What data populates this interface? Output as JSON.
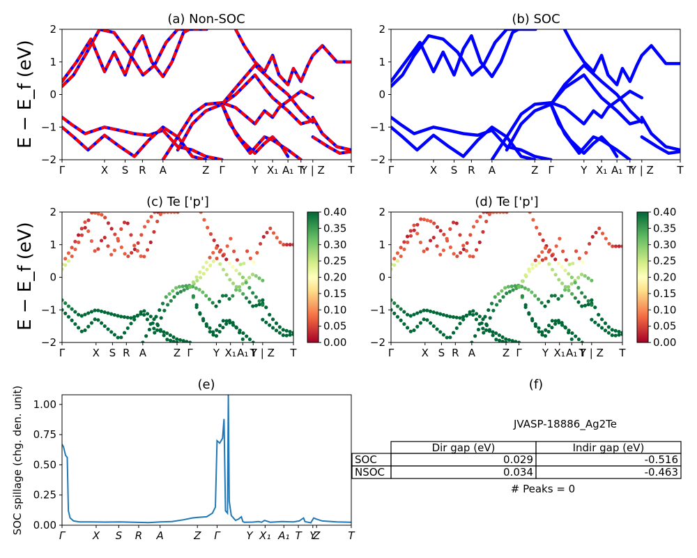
{
  "chart_data": [
    {
      "id": "a",
      "type": "line",
      "title": "(a) Non-SOC",
      "ylabel": "E − E_f (eV)",
      "ylim": [
        -2,
        2
      ],
      "yticks": [
        "2",
        "1",
        "0",
        "−1",
        "−2"
      ],
      "kpoint_labels": [
        "Γ",
        "X",
        "S",
        "R",
        "A",
        "Z",
        "Γ",
        "Y",
        "X₁",
        "A₁",
        "T",
        "Y | Z",
        "T"
      ],
      "kpoint_positions": [
        0,
        0.147,
        0.218,
        0.278,
        0.349,
        0.497,
        0.553,
        0.667,
        0.728,
        0.781,
        0.826,
        0.867,
        1.0
      ],
      "series": [
        {
          "color": "#0000ff",
          "style": "solid"
        },
        {
          "color": "#ff0000",
          "style": "dashed"
        }
      ],
      "bands": [
        {
          "x": [
            0,
            0.04,
            0.08,
            0.13,
            0.18,
            0.23,
            0.28,
            0.32,
            0.36,
            0.4,
            0.44,
            0.49,
            0.5
          ],
          "y": [
            0.25,
            0.6,
            1.2,
            2.0,
            1.9,
            1.3,
            0.6,
            0.9,
            1.6,
            2.0,
            2.0,
            2.0,
            2.0
          ]
        },
        {
          "x": [
            0,
            0.05,
            0.1,
            0.147,
            0.18,
            0.218,
            0.25,
            0.278,
            0.31,
            0.349,
            0.38,
            0.42,
            0.44
          ],
          "y": [
            0.4,
            1.0,
            1.7,
            0.7,
            1.3,
            0.6,
            1.4,
            1.8,
            1.0,
            0.55,
            1.0,
            1.9,
            2.0
          ]
        },
        {
          "x": [
            0.6,
            0.63,
            0.667,
            0.7,
            0.728,
            0.75,
            0.781,
            0.8,
            0.826,
            0.85,
            0.867,
            0.9,
            0.95,
            1.0
          ],
          "y": [
            2.0,
            1.5,
            1.0,
            0.7,
            1.2,
            0.6,
            0.3,
            0.8,
            0.4,
            0.9,
            1.2,
            1.5,
            1.0,
            1.0
          ]
        },
        {
          "x": [
            0,
            0.03,
            0.08,
            0.147,
            0.2,
            0.25,
            0.3,
            0.349,
            0.4,
            0.45,
            0.497,
            0.553
          ],
          "y": [
            -0.7,
            -0.9,
            -1.2,
            -1.0,
            -1.1,
            -1.2,
            -1.25,
            -1.1,
            -1.6,
            -1.7,
            -1.9,
            -2.0
          ]
        },
        {
          "x": [
            0,
            0.04,
            0.09,
            0.147,
            0.2,
            0.25,
            0.3,
            0.349,
            0.4,
            0.45,
            0.497
          ],
          "y": [
            -1.0,
            -1.3,
            -1.7,
            -1.25,
            -1.6,
            -1.9,
            -1.4,
            -1.0,
            -1.3,
            -1.9,
            -2.0
          ]
        },
        {
          "x": [
            0.349,
            0.4,
            0.45,
            0.497,
            0.553,
            0.6,
            0.667,
            0.7,
            0.728,
            0.75,
            0.781,
            0.826,
            0.867
          ],
          "y": [
            -2.0,
            -1.3,
            -0.6,
            -0.3,
            -0.25,
            -0.4,
            -0.9,
            -0.5,
            -0.7,
            -0.4,
            -0.2,
            0.1,
            -0.1
          ]
        },
        {
          "x": [
            0.4,
            0.45,
            0.497,
            0.553,
            0.6,
            0.667,
            0.7,
            0.728,
            0.781,
            0.826,
            0.867
          ],
          "y": [
            -1.7,
            -0.9,
            -0.5,
            -0.3,
            0.0,
            0.6,
            0.2,
            -0.1,
            -0.5,
            -0.9,
            -0.8
          ]
        },
        {
          "x": [
            0.553,
            0.6,
            0.667,
            0.728,
            0.781,
            0.826,
            0.867
          ],
          "y": [
            -0.3,
            0.2,
            0.9,
            0.4,
            0.0,
            -0.5,
            -0.85
          ]
        },
        {
          "x": [
            0.553,
            0.58,
            0.62,
            0.667,
            0.7,
            0.728,
            0.76,
            0.781
          ],
          "y": [
            -0.3,
            -0.9,
            -1.4,
            -1.8,
            -1.5,
            -1.3,
            -1.6,
            -1.9
          ]
        },
        {
          "x": [
            0.553,
            0.6,
            0.65,
            0.7,
            0.728,
            0.781,
            0.826
          ],
          "y": [
            -0.3,
            -1.2,
            -1.8,
            -1.3,
            -1.4,
            -1.7,
            -2.0
          ]
        },
        {
          "x": [
            0.867,
            0.9,
            0.95,
            1.0
          ],
          "y": [
            -0.7,
            -1.2,
            -1.6,
            -1.7
          ]
        },
        {
          "x": [
            0.867,
            0.92,
            0.96,
            1.0
          ],
          "y": [
            -1.3,
            -1.6,
            -1.8,
            -1.75
          ]
        }
      ]
    },
    {
      "id": "b",
      "type": "line",
      "title": "(b) SOC",
      "ylim": [
        -2,
        2
      ],
      "yticks": [
        "2",
        "1",
        "0",
        "−1",
        "−2"
      ],
      "kpoint_labels": [
        "Γ",
        "X",
        "S",
        "R",
        "A",
        "Z",
        "Γ",
        "Y",
        "X₁",
        "A₁",
        "T",
        "Y | Z",
        "T"
      ],
      "kpoint_positions": [
        0,
        0.147,
        0.218,
        0.278,
        0.349,
        0.497,
        0.553,
        0.667,
        0.728,
        0.781,
        0.826,
        0.867,
        1.0
      ],
      "series": [
        {
          "color": "#0000ff",
          "style": "solid"
        }
      ],
      "bands": [
        {
          "x": [
            0,
            0.04,
            0.08,
            0.13,
            0.18,
            0.23,
            0.28,
            0.32,
            0.36,
            0.4,
            0.44,
            0.49,
            0.5
          ],
          "y": [
            0.25,
            0.6,
            1.2,
            1.8,
            1.7,
            1.3,
            0.6,
            0.9,
            1.6,
            2.0,
            2.0,
            2.0,
            2.0
          ]
        },
        {
          "x": [
            0,
            0.05,
            0.1,
            0.147,
            0.18,
            0.218,
            0.25,
            0.278,
            0.31,
            0.349,
            0.38,
            0.42,
            0.44
          ],
          "y": [
            0.4,
            1.0,
            1.6,
            0.7,
            1.3,
            0.6,
            1.4,
            1.8,
            1.0,
            0.55,
            1.0,
            1.9,
            2.0
          ]
        },
        {
          "x": [
            0.6,
            0.63,
            0.667,
            0.7,
            0.728,
            0.75,
            0.781,
            0.8,
            0.826,
            0.85,
            0.867,
            0.9,
            0.95,
            1.0
          ],
          "y": [
            2.0,
            1.5,
            1.0,
            0.7,
            1.2,
            0.6,
            0.3,
            0.8,
            0.4,
            0.9,
            1.2,
            1.5,
            0.95,
            0.95
          ]
        },
        {
          "x": [
            0,
            0.03,
            0.08,
            0.147,
            0.2,
            0.25,
            0.3,
            0.349,
            0.4,
            0.45,
            0.497,
            0.553
          ],
          "y": [
            -0.7,
            -0.9,
            -1.2,
            -1.0,
            -1.1,
            -1.2,
            -1.25,
            -1.1,
            -1.6,
            -1.7,
            -1.9,
            -2.0
          ]
        },
        {
          "x": [
            0,
            0.04,
            0.09,
            0.147,
            0.2,
            0.25,
            0.3,
            0.349,
            0.4,
            0.45,
            0.497
          ],
          "y": [
            -1.0,
            -1.3,
            -1.7,
            -1.25,
            -1.6,
            -1.9,
            -1.4,
            -1.0,
            -1.3,
            -1.9,
            -2.0
          ]
        },
        {
          "x": [
            0.349,
            0.4,
            0.45,
            0.497,
            0.553,
            0.6,
            0.667,
            0.7,
            0.728,
            0.75,
            0.781,
            0.826,
            0.867
          ],
          "y": [
            -2.0,
            -1.3,
            -0.6,
            -0.3,
            -0.25,
            -0.4,
            -0.9,
            -0.5,
            -0.7,
            -0.4,
            -0.2,
            0.1,
            -0.1
          ]
        },
        {
          "x": [
            0.4,
            0.45,
            0.497,
            0.553,
            0.6,
            0.667,
            0.7,
            0.728,
            0.781,
            0.826,
            0.867
          ],
          "y": [
            -1.7,
            -0.9,
            -0.5,
            -0.3,
            0.2,
            0.6,
            0.2,
            -0.1,
            -0.5,
            -0.9,
            -0.8
          ]
        },
        {
          "x": [
            0.553,
            0.6,
            0.667,
            0.728,
            0.781,
            0.826,
            0.867
          ],
          "y": [
            -0.3,
            0.3,
            0.9,
            0.4,
            0.0,
            -0.5,
            -0.85
          ]
        },
        {
          "x": [
            0.553,
            0.58,
            0.62,
            0.667,
            0.7,
            0.728,
            0.76,
            0.781
          ],
          "y": [
            -0.3,
            -0.9,
            -1.4,
            -1.8,
            -1.5,
            -1.3,
            -1.6,
            -1.9
          ]
        },
        {
          "x": [
            0.553,
            0.6,
            0.65,
            0.7,
            0.728,
            0.781,
            0.826
          ],
          "y": [
            -0.3,
            -1.2,
            -1.8,
            -1.3,
            -1.4,
            -1.7,
            -2.0
          ]
        },
        {
          "x": [
            0.867,
            0.9,
            0.95,
            1.0
          ],
          "y": [
            -0.7,
            -1.2,
            -1.6,
            -1.7
          ]
        },
        {
          "x": [
            0.867,
            0.92,
            0.96,
            1.0
          ],
          "y": [
            -1.3,
            -1.6,
            -1.8,
            -1.75
          ]
        }
      ]
    },
    {
      "id": "c",
      "type": "scatter",
      "title": "(c)  Te ['p']",
      "ylabel": "E − E_f (eV)",
      "ylim": [
        -2,
        2
      ],
      "yticks": [
        "2",
        "1",
        "0",
        "−1",
        "−2"
      ],
      "kpoint_labels": [
        "Γ",
        "X",
        "S",
        "R",
        "A",
        "Z",
        "Γ",
        "Y",
        "X₁",
        "A₁",
        "T",
        "Y | Z",
        "T"
      ],
      "kpoint_positions": [
        0,
        0.147,
        0.218,
        0.278,
        0.349,
        0.497,
        0.553,
        0.667,
        0.728,
        0.781,
        0.826,
        0.867,
        1.0
      ],
      "colorbar": {
        "cmap": "RdYlGn",
        "min": 0.0,
        "max": 0.4,
        "ticks": [
          "0.40",
          "0.35",
          "0.30",
          "0.25",
          "0.20",
          "0.15",
          "0.10",
          "0.05",
          "0.00"
        ]
      },
      "points_from_bands_of": "a"
    },
    {
      "id": "d",
      "type": "scatter",
      "title": "(d) Te ['p']",
      "ylim": [
        -2,
        2
      ],
      "yticks": [
        "2",
        "1",
        "0",
        "−1",
        "−2"
      ],
      "kpoint_labels": [
        "Γ",
        "X",
        "S",
        "R",
        "A",
        "Z",
        "Γ",
        "Y",
        "X₁",
        "A₁",
        "T",
        "Y | Z",
        "T"
      ],
      "kpoint_positions": [
        0,
        0.147,
        0.218,
        0.278,
        0.349,
        0.497,
        0.553,
        0.667,
        0.728,
        0.781,
        0.826,
        0.867,
        1.0
      ],
      "colorbar": {
        "cmap": "RdYlGn",
        "min": 0.0,
        "max": 0.4,
        "ticks": [
          "0.40",
          "0.35",
          "0.30",
          "0.25",
          "0.20",
          "0.15",
          "0.10",
          "0.05",
          "0.00"
        ]
      },
      "points_from_bands_of": "b"
    },
    {
      "id": "e",
      "type": "line",
      "title": "(e)",
      "ylabel": "SOC spillage (chg. den. unit)",
      "ylim": [
        0,
        1.08
      ],
      "yticks": [
        "0.00",
        "0.25",
        "0.50",
        "0.75",
        "1.00"
      ],
      "kpoint_labels": [
        "Γ",
        "X",
        "S",
        "R",
        "A",
        "Z",
        "Γ",
        "Y",
        "X₁",
        "A₁",
        "T",
        "Y",
        "Z",
        "T"
      ],
      "kpoint_positions": [
        0,
        0.118,
        0.196,
        0.265,
        0.339,
        0.468,
        0.536,
        0.648,
        0.702,
        0.767,
        0.817,
        0.867,
        0.88,
        1.0
      ],
      "series": [
        {
          "color": "#1f77b4"
        }
      ],
      "x": [
        0,
        0.005,
        0.012,
        0.018,
        0.022,
        0.028,
        0.04,
        0.06,
        0.1,
        0.15,
        0.2,
        0.25,
        0.3,
        0.34,
        0.38,
        0.42,
        0.45,
        0.47,
        0.5,
        0.52,
        0.53,
        0.536,
        0.545,
        0.55,
        0.555,
        0.56,
        0.565,
        0.572,
        0.575,
        0.578,
        0.585,
        0.6,
        0.61,
        0.62,
        0.625,
        0.63,
        0.66,
        0.68,
        0.69,
        0.7,
        0.72,
        0.76,
        0.8,
        0.82,
        0.835,
        0.84,
        0.85,
        0.86,
        0.87,
        0.88,
        0.9,
        0.95,
        1.0
      ],
      "y": [
        0.67,
        0.65,
        0.58,
        0.56,
        0.12,
        0.06,
        0.035,
        0.028,
        0.027,
        0.026,
        0.028,
        0.025,
        0.022,
        0.028,
        0.03,
        0.045,
        0.06,
        0.065,
        0.07,
        0.1,
        0.15,
        0.7,
        0.68,
        0.7,
        0.72,
        0.88,
        0.12,
        0.1,
        1.08,
        0.2,
        0.08,
        0.04,
        0.05,
        0.07,
        0.03,
        0.025,
        0.026,
        0.03,
        0.025,
        0.04,
        0.025,
        0.03,
        0.028,
        0.035,
        0.06,
        0.03,
        0.025,
        0.02,
        0.06,
        0.05,
        0.035,
        0.027,
        0.025
      ]
    }
  ],
  "panel_f": {
    "title": "(f)",
    "material": "JVASP-18886_Ag2Te",
    "table": {
      "headers": [
        "",
        "Dir gap (eV)",
        "Indir gap (eV)"
      ],
      "rows": [
        {
          "label": "SOC",
          "dir": "0.029",
          "indir": "-0.516"
        },
        {
          "label": "NSOC",
          "dir": "0.034",
          "indir": "-0.463"
        }
      ]
    },
    "peaks": "# Peaks = 0"
  }
}
